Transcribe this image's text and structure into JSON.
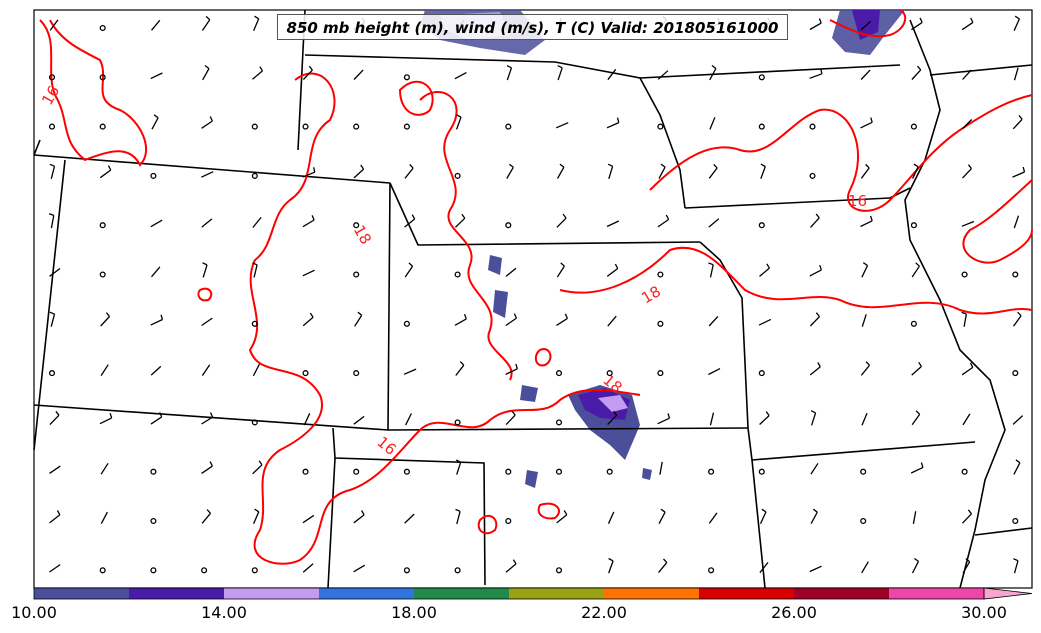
{
  "title": "850 mb height (m), wind (m/s), T (C) Valid: 201805161000",
  "colorbar": {
    "colors": [
      "#4b4f9a",
      "#4a1aa8",
      "#c39bf0",
      "#3273de",
      "#1f8a4a",
      "#9aa113",
      "#ff7400",
      "#d60000",
      "#a00025",
      "#f046a8",
      "#f7a6cf"
    ],
    "tick_labels": [
      "10.00",
      "14.00",
      "18.00",
      "22.00",
      "26.00",
      "30.00"
    ],
    "range": [
      10,
      30
    ]
  },
  "contour_labels": [
    {
      "text": "16"
    },
    {
      "text": "18"
    },
    {
      "text": "18"
    },
    {
      "text": "16"
    },
    {
      "text": "16"
    },
    {
      "text": "18"
    }
  ],
  "colors": {
    "temperature_contour": "#ff0000",
    "boundary": "#000000",
    "wind_fill": "#4b4f9a"
  }
}
